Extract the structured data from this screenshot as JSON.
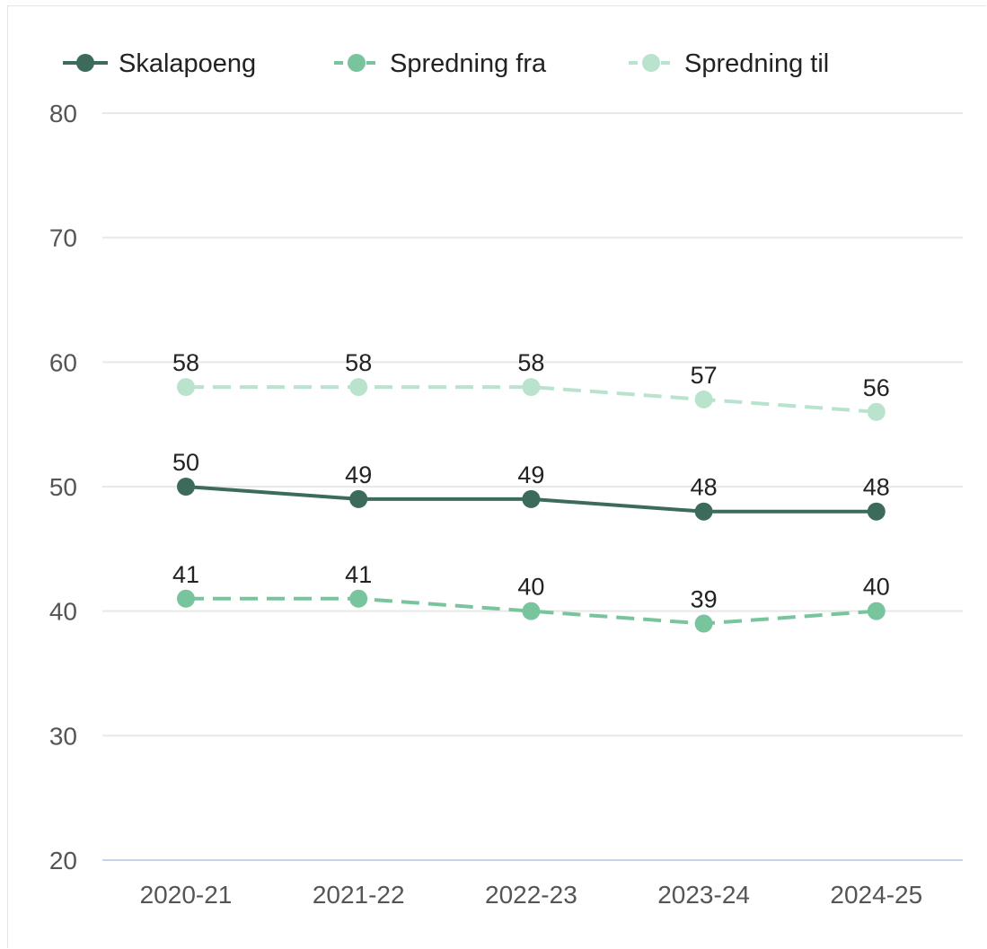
{
  "chart_data": {
    "type": "line",
    "categories": [
      "2020-21",
      "2021-22",
      "2022-23",
      "2023-24",
      "2024-25"
    ],
    "series": [
      {
        "name": "Skalapoeng",
        "values": [
          50,
          49,
          49,
          48,
          48
        ],
        "color": "#3d6b5b",
        "dash": "solid"
      },
      {
        "name": "Spredning fra",
        "values": [
          41,
          41,
          40,
          39,
          40
        ],
        "color": "#78c49d",
        "dash": "dashed"
      },
      {
        "name": "Spredning til",
        "values": [
          58,
          58,
          58,
          57,
          56
        ],
        "color": "#b9e3cd",
        "dash": "dashed"
      }
    ],
    "ylim": [
      20,
      80
    ],
    "yticks": [
      20,
      30,
      40,
      50,
      60,
      70,
      80
    ],
    "grid": true,
    "legend": "top-left",
    "title": "",
    "xlabel": "",
    "ylabel": ""
  }
}
